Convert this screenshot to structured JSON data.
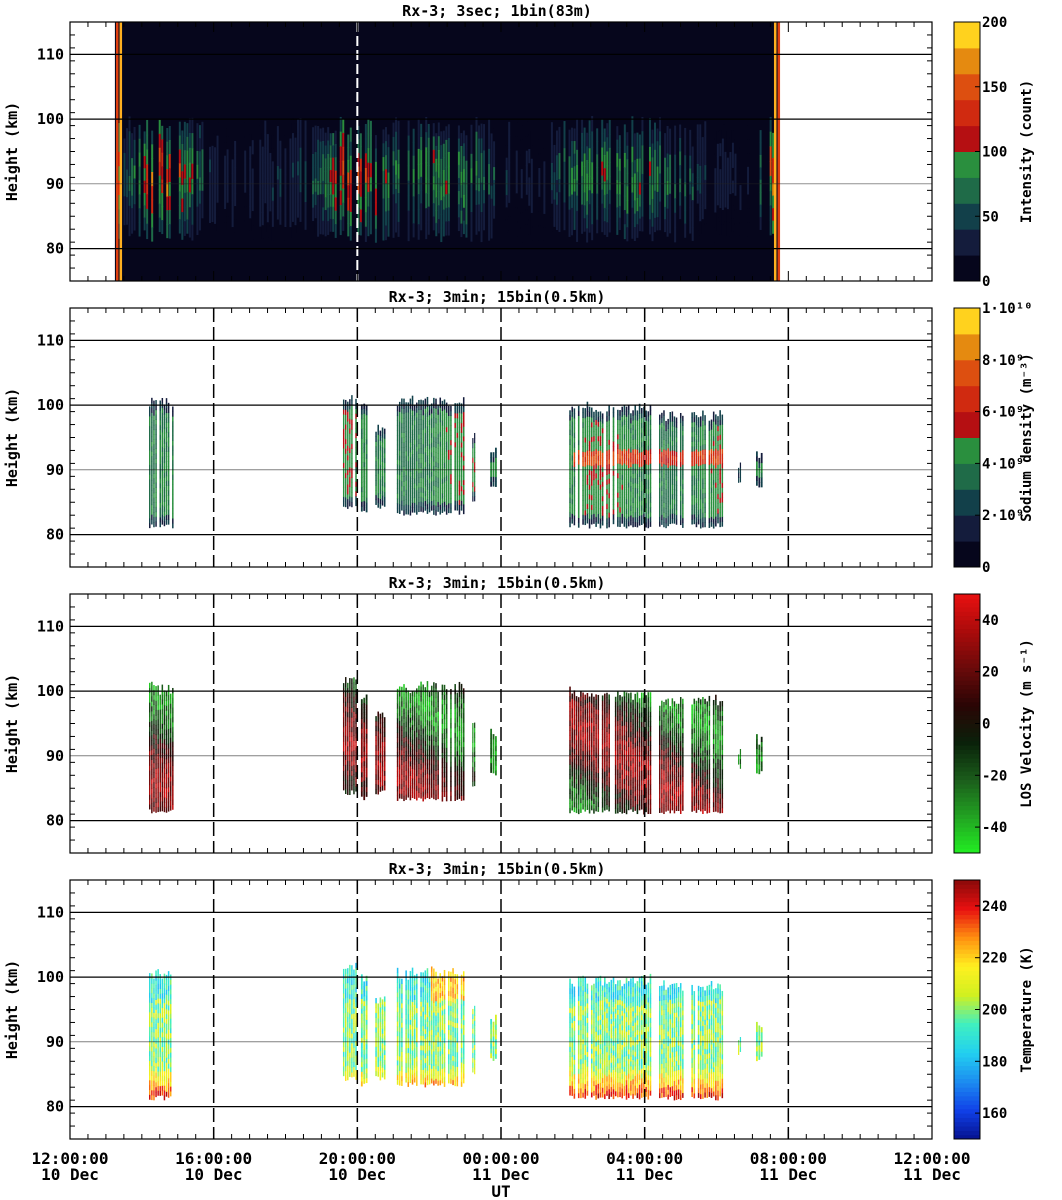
{
  "figure": {
    "xlabel": "UT",
    "x_ticks": [
      {
        "time": "12:00:00",
        "date": "10 Dec"
      },
      {
        "time": "16:00:00",
        "date": "10 Dec"
      },
      {
        "time": "20:00:00",
        "date": "10 Dec"
      },
      {
        "time": "00:00:00",
        "date": "11 Dec"
      },
      {
        "time": "04:00:00",
        "date": "11 Dec"
      },
      {
        "time": "08:00:00",
        "date": "11 Dec"
      },
      {
        "time": "12:00:00",
        "date": "11 Dec"
      }
    ]
  },
  "chart_data": [
    {
      "type": "heatmap",
      "title": "Rx-3;  3sec; 1bin(83m)",
      "ylabel": "Height (km)",
      "x_range_hours_ut": [
        12,
        36
      ],
      "ylim": [
        75,
        115
      ],
      "y_ticks": [
        80,
        90,
        100,
        110
      ],
      "colorbar": {
        "label": "Intensity (count)",
        "range": [
          0,
          200
        ],
        "ticks": [
          "0",
          "50",
          "100",
          "150",
          "200"
        ]
      },
      "coverage_hours_ut": [
        [
          13.25,
          31.75
        ]
      ],
      "layer": {
        "top_km": 99,
        "bottom_km": 82,
        "peak_km": 90
      },
      "intensity_profile": {
        "x": [
          13.2,
          13.5,
          14.3,
          15,
          16,
          17,
          18,
          19,
          19.5,
          20,
          21,
          22,
          23,
          24,
          25,
          26,
          27,
          28,
          29,
          30,
          31,
          31.7
        ],
        "values": [
          190,
          40,
          150,
          120,
          30,
          30,
          40,
          60,
          130,
          140,
          70,
          90,
          85,
          40,
          20,
          80,
          90,
          85,
          60,
          30,
          20,
          190
        ]
      }
    },
    {
      "type": "heatmap",
      "title": "Rx-3; 3min; 15bin(0.5km)",
      "ylabel": "Height (km)",
      "x_range_hours_ut": [
        12,
        36
      ],
      "ylim": [
        75,
        115
      ],
      "y_ticks": [
        80,
        90,
        100,
        110
      ],
      "colorbar": {
        "label": "Sodium density (m⁻³)",
        "range": [
          0,
          10000000000.0
        ],
        "ticks": [
          "0",
          "2·10⁹",
          "4·10⁹",
          "6·10⁹",
          "8·10⁹",
          "1·10¹⁰"
        ]
      },
      "data_segments": [
        {
          "x": [
            14.2,
            14.9
          ],
          "bottom_km": 81,
          "top_km": 101
        },
        {
          "x": [
            19.6,
            20.0
          ],
          "bottom_km": 84,
          "top_km": 102
        },
        {
          "x": [
            20.1,
            20.3
          ],
          "bottom_km": 83,
          "top_km": 100
        },
        {
          "x": [
            20.5,
            20.8
          ],
          "bottom_km": 84,
          "top_km": 97
        },
        {
          "x": [
            21.1,
            23.0
          ],
          "bottom_km": 83,
          "top_km": 101
        },
        {
          "x": [
            23.2,
            23.3
          ],
          "bottom_km": 85,
          "top_km": 96
        },
        {
          "x": [
            23.7,
            23.9
          ],
          "bottom_km": 87,
          "top_km": 94
        },
        {
          "x": [
            25.9,
            28.2
          ],
          "bottom_km": 81,
          "top_km": 100
        },
        {
          "x": [
            28.4,
            29.1
          ],
          "bottom_km": 81,
          "top_km": 99
        },
        {
          "x": [
            29.3,
            30.2
          ],
          "bottom_km": 81,
          "top_km": 99
        },
        {
          "x": [
            30.6,
            30.7
          ],
          "bottom_km": 88,
          "top_km": 91
        },
        {
          "x": [
            31.1,
            31.3
          ],
          "bottom_km": 87,
          "top_km": 93
        }
      ]
    },
    {
      "type": "heatmap",
      "title": "Rx-3; 3min; 15bin(0.5km)",
      "ylabel": "Height (km)",
      "x_range_hours_ut": [
        12,
        36
      ],
      "ylim": [
        75,
        115
      ],
      "y_ticks": [
        80,
        90,
        100,
        110
      ],
      "colorbar": {
        "label": "LOS Velocity (m s⁻¹)",
        "range": [
          -50,
          50
        ],
        "ticks": [
          "-40",
          "-20",
          "0",
          "20",
          "40"
        ]
      },
      "data_segments": [
        {
          "x": [
            14.2,
            14.9
          ],
          "bottom_km": 81,
          "top_km": 101
        },
        {
          "x": [
            19.6,
            20.0
          ],
          "bottom_km": 84,
          "top_km": 102
        },
        {
          "x": [
            20.1,
            20.3
          ],
          "bottom_km": 83,
          "top_km": 100
        },
        {
          "x": [
            20.5,
            20.8
          ],
          "bottom_km": 84,
          "top_km": 97
        },
        {
          "x": [
            21.1,
            23.0
          ],
          "bottom_km": 83,
          "top_km": 101
        },
        {
          "x": [
            23.2,
            23.3
          ],
          "bottom_km": 85,
          "top_km": 96
        },
        {
          "x": [
            23.7,
            23.9
          ],
          "bottom_km": 87,
          "top_km": 94
        },
        {
          "x": [
            25.9,
            28.2
          ],
          "bottom_km": 81,
          "top_km": 100
        },
        {
          "x": [
            28.4,
            29.1
          ],
          "bottom_km": 81,
          "top_km": 99
        },
        {
          "x": [
            29.3,
            30.2
          ],
          "bottom_km": 81,
          "top_km": 99
        },
        {
          "x": [
            30.6,
            30.7
          ],
          "bottom_km": 88,
          "top_km": 91
        },
        {
          "x": [
            31.1,
            31.3
          ],
          "bottom_km": 87,
          "top_km": 93
        }
      ]
    },
    {
      "type": "heatmap",
      "title": "Rx-3; 3min; 15bin(0.5km)",
      "ylabel": "Height (km)",
      "x_range_hours_ut": [
        12,
        36
      ],
      "ylim": [
        75,
        115
      ],
      "y_ticks": [
        80,
        90,
        100,
        110
      ],
      "colorbar": {
        "label": "Temperature (K)",
        "range": [
          150,
          250
        ],
        "ticks": [
          "160",
          "180",
          "200",
          "220",
          "240"
        ]
      },
      "data_segments": [
        {
          "x": [
            14.2,
            14.9
          ],
          "bottom_km": 81,
          "top_km": 101
        },
        {
          "x": [
            19.6,
            20.0
          ],
          "bottom_km": 84,
          "top_km": 102
        },
        {
          "x": [
            20.1,
            20.3
          ],
          "bottom_km": 83,
          "top_km": 100
        },
        {
          "x": [
            20.5,
            20.8
          ],
          "bottom_km": 84,
          "top_km": 97
        },
        {
          "x": [
            21.1,
            23.0
          ],
          "bottom_km": 83,
          "top_km": 101
        },
        {
          "x": [
            23.2,
            23.3
          ],
          "bottom_km": 85,
          "top_km": 96
        },
        {
          "x": [
            23.7,
            23.9
          ],
          "bottom_km": 87,
          "top_km": 94
        },
        {
          "x": [
            25.9,
            28.2
          ],
          "bottom_km": 81,
          "top_km": 100
        },
        {
          "x": [
            28.4,
            29.1
          ],
          "bottom_km": 81,
          "top_km": 99
        },
        {
          "x": [
            29.3,
            30.2
          ],
          "bottom_km": 81,
          "top_km": 99
        },
        {
          "x": [
            30.6,
            30.7
          ],
          "bottom_km": 88,
          "top_km": 91
        },
        {
          "x": [
            31.1,
            31.3
          ],
          "bottom_km": 87,
          "top_km": 93
        }
      ]
    }
  ]
}
